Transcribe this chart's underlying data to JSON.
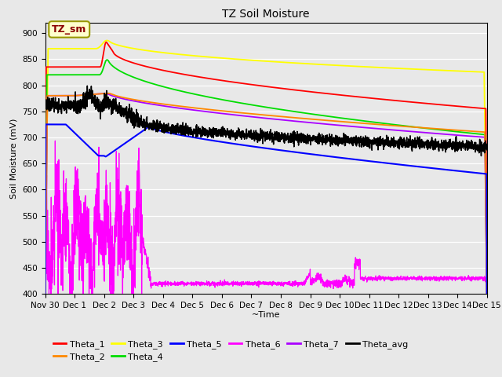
{
  "title": "TZ Soil Moisture",
  "ylabel": "Soil Moisture (mV)",
  "xlabel": "~Time",
  "ylim": [
    400,
    920
  ],
  "yticks": [
    400,
    450,
    500,
    550,
    600,
    650,
    700,
    750,
    800,
    850,
    900
  ],
  "xlim": [
    -1,
    14
  ],
  "xtick_labels": [
    "Nov 30",
    "Dec 1",
    "Dec 2",
    "Dec 3",
    "Dec 4",
    "Dec 5",
    "Dec 6",
    "Dec 7",
    "Dec 8",
    "Dec 9",
    "Dec 10",
    "Dec 11",
    "Dec 12",
    "Dec 13",
    "Dec 14",
    "Dec 15"
  ],
  "xtick_positions": [
    -1,
    0,
    1,
    2,
    3,
    4,
    5,
    6,
    7,
    8,
    9,
    10,
    11,
    12,
    13,
    14
  ],
  "colors": {
    "Theta_1": "#ff0000",
    "Theta_2": "#ff8800",
    "Theta_3": "#ffff00",
    "Theta_4": "#00dd00",
    "Theta_5": "#0000ff",
    "Theta_6": "#ff00ff",
    "Theta_7": "#aa00ff",
    "Theta_avg": "#000000"
  },
  "legend_label_box": "TZ_sm",
  "bg_color": "#e8e8e8",
  "fig_bg": "#e8e8e8"
}
